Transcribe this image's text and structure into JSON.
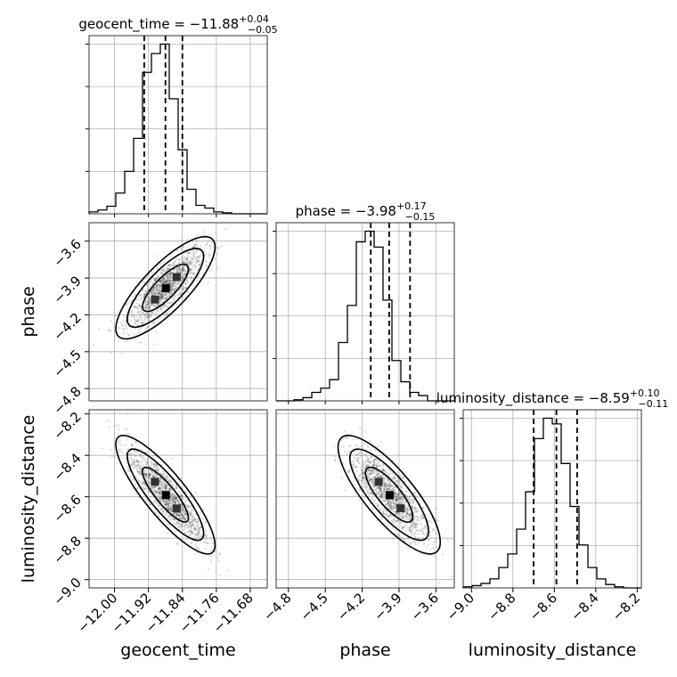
{
  "chart_data": {
    "type": "corner",
    "parameters": [
      {
        "name": "geocent_time",
        "xlabel": "geocent_time",
        "title": {
          "prefix": "geocent_time = −11.88",
          "sup": "+0.04",
          "sub": "−0.05"
        },
        "range": [
          -12.06,
          -11.64
        ],
        "ticks": [
          -12.0,
          -11.92,
          -11.84,
          -11.76,
          -11.68
        ],
        "tick_labels": [
          "−12.00",
          "−11.92",
          "−11.84",
          "−11.76",
          "−11.68"
        ],
        "quantiles": [
          -11.93,
          -11.88,
          -11.84
        ],
        "hist_counts": [
          2,
          4,
          8,
          22,
          45,
          80,
          150,
          170,
          180,
          122,
          68,
          26,
          9,
          6,
          2,
          1,
          0,
          0,
          0,
          0
        ]
      },
      {
        "name": "phase",
        "xlabel": "phase",
        "ylabel": "phase",
        "title": {
          "prefix": "phase = −3.98",
          "sup": "+0.17",
          "sub": "−0.15"
        },
        "range": [
          -4.9,
          -3.45
        ],
        "ticks": [
          -4.8,
          -4.5,
          -4.2,
          -3.9,
          -3.6
        ],
        "tick_labels": [
          "−4.8",
          "−4.5",
          "−4.2",
          "−3.9",
          "−3.6"
        ],
        "quantiles": [
          -4.13,
          -3.98,
          -3.81
        ],
        "hist_counts": [
          0,
          0,
          1,
          3,
          8,
          12,
          20,
          55,
          90,
          150,
          160,
          145,
          95,
          38,
          18,
          8,
          5,
          0,
          0,
          0
        ]
      },
      {
        "name": "luminosity_distance",
        "xlabel": "luminosity_distance",
        "ylabel": "luminosity_distance",
        "title": {
          "prefix": "luminosity_distance = −8.59",
          "sup": "+0.10",
          "sub": "−0.11"
        },
        "range": [
          -9.04,
          -8.18
        ],
        "ticks": [
          -9.0,
          -8.8,
          -8.6,
          -8.4,
          -8.2
        ],
        "tick_labels": [
          "−9.0",
          "−8.8",
          "−8.6",
          "−8.4",
          "−8.2"
        ],
        "quantiles": [
          -8.7,
          -8.59,
          -8.49
        ],
        "hist_counts": [
          1,
          2,
          4,
          8,
          18,
          30,
          52,
          85,
          132,
          150,
          145,
          110,
          72,
          38,
          18,
          8,
          3,
          1,
          0,
          0
        ]
      }
    ],
    "scatter_samples": {
      "geocent_time_vs_phase": {
        "center": [
          -11.88,
          -3.98
        ],
        "sigma": [
          0.045,
          0.16
        ],
        "rho": 0.8
      },
      "geocent_time_vs_luminosity_distance": {
        "center": [
          -11.88,
          -8.59
        ],
        "sigma": [
          0.045,
          0.11
        ],
        "rho": -0.85
      },
      "phase_vs_luminosity_distance": {
        "center": [
          -3.98,
          -8.59
        ],
        "sigma": [
          0.16,
          0.11
        ],
        "rho": -0.8
      }
    },
    "grid": true
  }
}
